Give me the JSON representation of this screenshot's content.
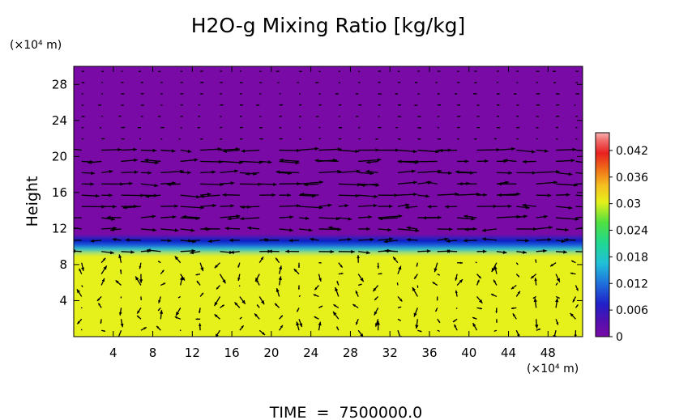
{
  "chart_data": {
    "type": "heatmap",
    "title": "H2O-g Mixing Ratio [kg/kg]",
    "ylabel": "Height",
    "y_unit": "(×10⁴ m)",
    "x_unit": "(×10⁴ m)",
    "footer": "TIME  =  7500000.0",
    "x_ticks": [
      "4",
      "8",
      "12",
      "16",
      "20",
      "24",
      "28",
      "32",
      "36",
      "40",
      "44",
      "48"
    ],
    "y_ticks": [
      "4",
      "8",
      "12",
      "16",
      "20",
      "24",
      "28"
    ],
    "xlim": [
      0,
      51.5
    ],
    "ylim": [
      0,
      30
    ],
    "colorbar": {
      "ticks": [
        "0",
        "0.006",
        "0.012",
        "0.018",
        "0.024",
        "0.03",
        "0.036",
        "0.042"
      ],
      "tick_values": [
        0,
        0.006,
        0.012,
        0.018,
        0.024,
        0.03,
        0.036,
        0.042
      ],
      "range": [
        0,
        0.046
      ]
    },
    "field": {
      "lower_layer": {
        "from_height": 0,
        "to_height": 9.5,
        "value": 0.027
      },
      "transition": {
        "from_height": 9.5,
        "to_height": 11.0,
        "value": 0.008
      },
      "upper_layer": {
        "from_height": 11.0,
        "to_height": 30,
        "value": 0.0
      }
    },
    "overlay": "wind vectors",
    "colors": {
      "lower": "#e6f01a",
      "band": "#1e40d8",
      "upper": "#7a0aa6",
      "arrows": "#000000"
    }
  }
}
